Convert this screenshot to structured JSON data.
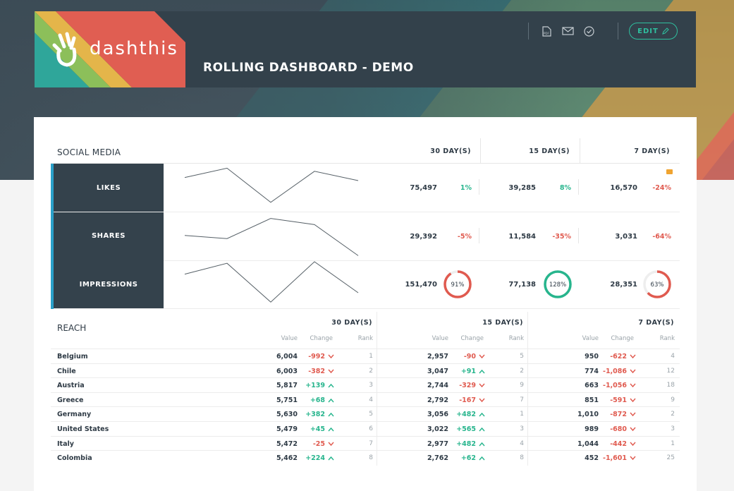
{
  "app": {
    "brand": "dashthis",
    "dashboard_title": "ROLLING DASHBOARD - DEMO"
  },
  "toolbar": {
    "icons": [
      "pdf-icon",
      "email-icon",
      "check-circle-icon"
    ],
    "edit_label": "EDIT"
  },
  "colors": {
    "accent": "#2fbf9f",
    "positive": "#27b58d",
    "negative": "#e05a4f",
    "row_label_bg": "#34424c"
  },
  "social": {
    "title": "SOCIAL MEDIA",
    "periods": [
      "30 DAY(S)",
      "15 DAY(S)",
      "7 DAY(S)"
    ],
    "rows": [
      {
        "label": "LIKES",
        "spark": [
          72,
          78,
          56,
          76,
          70
        ],
        "cells": [
          {
            "value": "75,497",
            "change": "1%",
            "dir": "pos"
          },
          {
            "value": "39,285",
            "change": "8%",
            "dir": "pos"
          },
          {
            "value": "16,570",
            "change": "-24%",
            "dir": "neg"
          }
        ]
      },
      {
        "label": "SHARES",
        "spark": [
          66,
          64,
          77,
          73,
          53
        ],
        "cells": [
          {
            "value": "29,392",
            "change": "-5%",
            "dir": "neg"
          },
          {
            "value": "11,584",
            "change": "-35%",
            "dir": "neg"
          },
          {
            "value": "3,031",
            "change": "-64%",
            "dir": "neg"
          }
        ]
      },
      {
        "label": "IMPRESSIONS",
        "spark": [
          72,
          79,
          54,
          80,
          60
        ],
        "cells": [
          {
            "value": "151,470",
            "gauge": "91%",
            "gauge_value": 0.91,
            "gauge_color": "#e05a4f"
          },
          {
            "value": "77,138",
            "gauge": "128%",
            "gauge_value": 1.0,
            "gauge_color": "#27b58d"
          },
          {
            "value": "28,351",
            "gauge": "63%",
            "gauge_value": 0.63,
            "gauge_color": "#e05a4f"
          }
        ]
      }
    ]
  },
  "reach": {
    "title": "REACH",
    "periods": [
      "30 DAY(S)",
      "15 DAY(S)",
      "7 DAY(S)"
    ],
    "subheaders": [
      "Value",
      "Change",
      "Rank"
    ],
    "rows": [
      {
        "country": "Belgium",
        "p": [
          [
            "6,004",
            "-992",
            "neg",
            "1"
          ],
          [
            "2,957",
            "-90",
            "neg",
            "5"
          ],
          [
            "950",
            "-622",
            "neg",
            "4"
          ]
        ]
      },
      {
        "country": "Chile",
        "p": [
          [
            "6,003",
            "-382",
            "neg",
            "2"
          ],
          [
            "3,047",
            "+91",
            "pos",
            "2"
          ],
          [
            "774",
            "-1,086",
            "neg",
            "12"
          ]
        ]
      },
      {
        "country": "Austria",
        "p": [
          [
            "5,817",
            "+139",
            "pos",
            "3"
          ],
          [
            "2,744",
            "-329",
            "neg",
            "9"
          ],
          [
            "663",
            "-1,056",
            "neg",
            "18"
          ]
        ]
      },
      {
        "country": "Greece",
        "p": [
          [
            "5,751",
            "+68",
            "pos",
            "4"
          ],
          [
            "2,792",
            "-167",
            "neg",
            "7"
          ],
          [
            "851",
            "-591",
            "neg",
            "9"
          ]
        ]
      },
      {
        "country": "Germany",
        "p": [
          [
            "5,630",
            "+382",
            "pos",
            "5"
          ],
          [
            "3,056",
            "+482",
            "pos",
            "1"
          ],
          [
            "1,010",
            "-872",
            "neg",
            "2"
          ]
        ]
      },
      {
        "country": "United States",
        "p": [
          [
            "5,479",
            "+45",
            "pos",
            "6"
          ],
          [
            "3,022",
            "+565",
            "pos",
            "3"
          ],
          [
            "989",
            "-680",
            "neg",
            "3"
          ]
        ]
      },
      {
        "country": "Italy",
        "p": [
          [
            "5,472",
            "-25",
            "neg",
            "7"
          ],
          [
            "2,977",
            "+482",
            "pos",
            "4"
          ],
          [
            "1,044",
            "-442",
            "neg",
            "1"
          ]
        ]
      },
      {
        "country": "Colombia",
        "p": [
          [
            "5,462",
            "+224",
            "pos",
            "8"
          ],
          [
            "2,762",
            "+62",
            "pos",
            "8"
          ],
          [
            "452",
            "-1,601",
            "neg",
            "25"
          ]
        ]
      }
    ]
  }
}
